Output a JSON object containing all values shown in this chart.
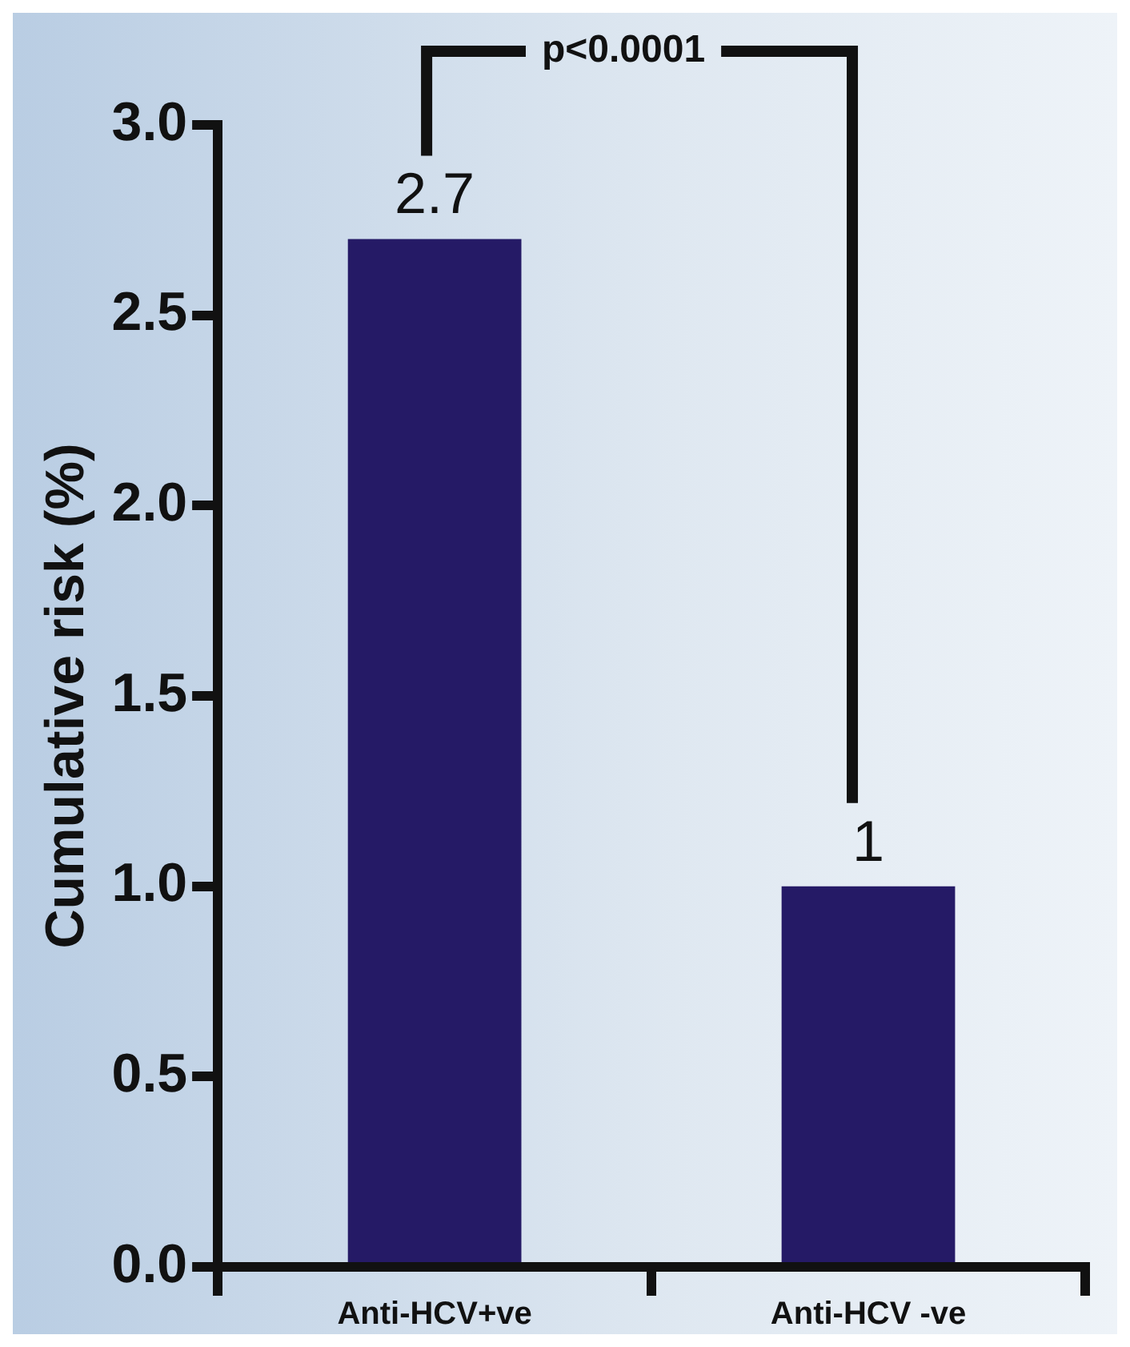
{
  "chart_data": {
    "type": "bar",
    "ylabel": "Cumulative risk (%)",
    "categories": [
      "Anti-HCV+ve",
      "Anti-HCV -ve"
    ],
    "values": [
      2.7,
      1
    ],
    "color": "#251a66",
    "ylim": [
      0,
      3
    ],
    "yticks": [
      {
        "value": 0,
        "label": "0.0"
      },
      {
        "value": 0.5,
        "label": "0.5"
      },
      {
        "value": 1,
        "label": "1.0"
      },
      {
        "value": 1.5,
        "label": "1.5"
      },
      {
        "value": 2,
        "label": "2.0"
      },
      {
        "value": 2.5,
        "label": "2.5"
      },
      {
        "value": 3,
        "label": "3.0"
      }
    ],
    "data_labels": true,
    "legend": false,
    "annotations": [
      "p<0.0001"
    ]
  }
}
